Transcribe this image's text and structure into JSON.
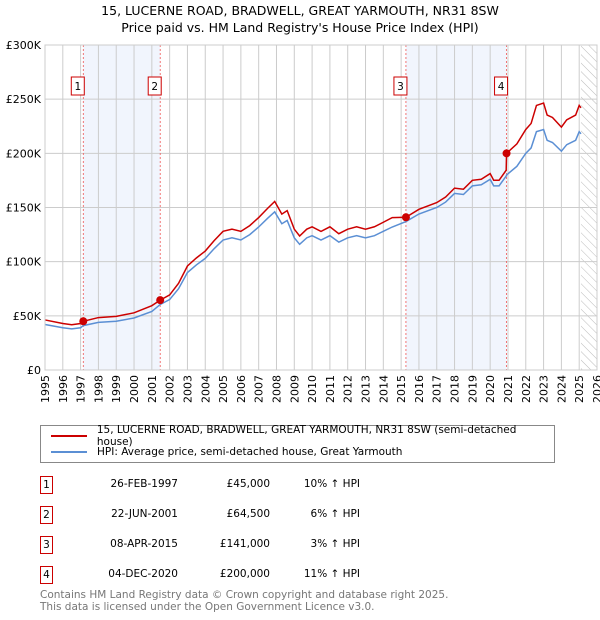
{
  "chart_data": {
    "type": "line",
    "title": "15, LUCERNE ROAD, BRADWELL, GREAT YARMOUTH, NR31 8SW",
    "subtitle": "Price paid vs. HM Land Registry's House Price Index (HPI)",
    "ylim": [
      0,
      300000
    ],
    "xlim": [
      1995,
      2026
    ],
    "y_ticks": [
      {
        "v": 0,
        "label": "£0"
      },
      {
        "v": 50000,
        "label": "£50K"
      },
      {
        "v": 100000,
        "label": "£100K"
      },
      {
        "v": 150000,
        "label": "£150K"
      },
      {
        "v": 200000,
        "label": "£200K"
      },
      {
        "v": 250000,
        "label": "£250K"
      },
      {
        "v": 300000,
        "label": "£300K"
      }
    ],
    "x_ticks": [
      "1995",
      "1996",
      "1997",
      "1998",
      "1999",
      "2000",
      "2001",
      "2002",
      "2003",
      "2004",
      "2005",
      "2006",
      "2007",
      "2008",
      "2009",
      "2010",
      "2011",
      "2012",
      "2013",
      "2014",
      "2015",
      "2016",
      "2017",
      "2018",
      "2019",
      "2020",
      "2021",
      "2022",
      "2023",
      "2024",
      "2025",
      "2026"
    ],
    "grid": true,
    "x": [
      1995,
      1996,
      1996.5,
      1997,
      1997.15,
      1998,
      1999,
      2000,
      2001,
      2001.47,
      2002,
      2002.5,
      2003,
      2003.5,
      2004,
      2004.5,
      2005,
      2005.5,
      2006,
      2006.5,
      2007,
      2007.5,
      2007.9,
      2008.3,
      2008.6,
      2009,
      2009.3,
      2009.7,
      2010,
      2010.5,
      2011,
      2011.5,
      2012,
      2012.5,
      2013,
      2013.5,
      2014,
      2014.5,
      2015.27,
      2016,
      2017,
      2017.5,
      2018,
      2018.5,
      2019,
      2019.5,
      2020,
      2020.2,
      2020.5,
      2020.9,
      2020.92,
      2021.5,
      2022,
      2022.3,
      2022.6,
      2023,
      2023.2,
      2023.5,
      2024,
      2024.3,
      2024.8,
      2025,
      2025.1
    ],
    "series": [
      {
        "name": "15, LUCERNE ROAD, BRADWELL, GREAT YARMOUTH, NR31 8SW (semi-detached house)",
        "color": "#cc0000",
        "values": [
          46200,
          42900,
          41800,
          42900,
          45000,
          48400,
          49500,
          52800,
          59400,
          64500,
          69300,
          80000,
          96000,
          103400,
          109800,
          119400,
          128000,
          130000,
          128000,
          133300,
          140700,
          149200,
          155600,
          143900,
          147100,
          130000,
          123700,
          130000,
          132200,
          127900,
          132200,
          125800,
          130000,
          132200,
          130000,
          132200,
          136400,
          140700,
          141000,
          148300,
          154500,
          159700,
          167900,
          166900,
          175100,
          176100,
          181300,
          175100,
          175100,
          184400,
          200000,
          208700,
          222000,
          227600,
          244200,
          246400,
          235300,
          233100,
          224200,
          230900,
          235300,
          244200,
          242000
        ]
      },
      {
        "name": "HPI: Average price, semi-detached house, Great Yarmouth",
        "color": "#5b8fd4",
        "values": [
          42000,
          39000,
          38000,
          39000,
          41000,
          44000,
          45000,
          48000,
          54000,
          60500,
          65000,
          75000,
          90000,
          97000,
          103000,
          112000,
          120000,
          122000,
          120000,
          125000,
          132000,
          140000,
          146000,
          135000,
          138000,
          122000,
          116000,
          122000,
          124000,
          120000,
          124000,
          118000,
          122000,
          124000,
          122000,
          124000,
          128000,
          132000,
          137000,
          144000,
          150000,
          155000,
          163000,
          162000,
          170000,
          171000,
          176000,
          170000,
          170000,
          179000,
          180000,
          188000,
          200000,
          205000,
          220000,
          222000,
          212000,
          210000,
          202000,
          208000,
          212000,
          220000,
          218000
        ]
      }
    ],
    "sales": [
      {
        "n": "1",
        "x": 1997.15,
        "date": "26-FEB-1997",
        "price": 45000,
        "price_label": "£45,000",
        "hpi": "10% ↑ HPI"
      },
      {
        "n": "2",
        "x": 2001.47,
        "date": "22-JUN-2001",
        "price": 64500,
        "price_label": "£64,500",
        "hpi": "6% ↑ HPI"
      },
      {
        "n": "3",
        "x": 2015.27,
        "date": "08-APR-2015",
        "price": 141000,
        "price_label": "£141,000",
        "hpi": "3% ↑ HPI"
      },
      {
        "n": "4",
        "x": 2020.92,
        "date": "04-DEC-2020",
        "price": 200000,
        "price_label": "£200,000",
        "hpi": "11% ↑ HPI"
      }
    ],
    "shaded_periods": [
      [
        1997.15,
        2001.47
      ],
      [
        2015.27,
        2020.92
      ]
    ],
    "forecast_start": 2025.1,
    "legend_position": "below"
  },
  "footer": [
    "Contains HM Land Registry data © Crown copyright and database right 2025.",
    "This data is licensed under the Open Government Licence v3.0."
  ]
}
